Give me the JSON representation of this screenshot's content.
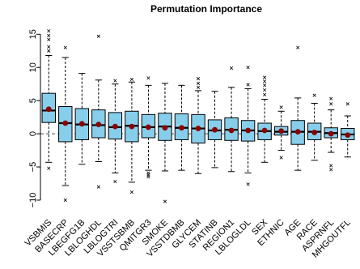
{
  "chart_data": {
    "type": "boxplot",
    "title": "Permutation Importance",
    "xlabel": "",
    "ylabel": "",
    "ylim": [
      -12.2,
      16.5
    ],
    "yticks": [
      -10,
      -5,
      0,
      5,
      10,
      15
    ],
    "reference_line": 0,
    "grid": false,
    "legend": "none",
    "colors": {
      "box_fill": "#87ceeb",
      "mean_point": "#8b0000",
      "whisker": "#000000",
      "outlier": "#000000",
      "reference": "#555555"
    },
    "categories": [
      "VSBMIS",
      "BASECRP",
      "LBEGFG1B",
      "LBLOGHDL",
      "LBLOGTRI",
      "VSSTSBMB",
      "QMITGR3",
      "SMOKE",
      "VSSTDBMB",
      "GLYCEM",
      "STATINB",
      "REGION1",
      "LBLOGLDL",
      "SEX",
      "ETHNIC",
      "AGE",
      "RACE",
      "ASPRNFL",
      "MHGOUTFL"
    ],
    "boxes": [
      {
        "name": "VSBMIS",
        "min": -4.3,
        "q1": 1.7,
        "median": 3.5,
        "q3": 6.1,
        "max": 11.8,
        "mean": 3.7,
        "outliers": [
          -5.2,
          12.5,
          13.1,
          14.2,
          14.8,
          15.5
        ]
      },
      {
        "name": "BASECRP",
        "min": -7.8,
        "q1": -1.2,
        "median": 1.6,
        "q3": 4.1,
        "max": 11.5,
        "mean": 1.6,
        "outliers": [
          -10.0,
          13.0
        ]
      },
      {
        "name": "LBEGFG1B",
        "min": -4.6,
        "q1": -0.9,
        "median": 1.4,
        "q3": 3.8,
        "max": 9.1,
        "mean": 1.5,
        "outliers": []
      },
      {
        "name": "LBLOGHDL",
        "min": -4.2,
        "q1": -0.6,
        "median": 1.3,
        "q3": 3.6,
        "max": 8.1,
        "mean": 1.4,
        "outliers": [
          -8.0,
          14.7
        ]
      },
      {
        "name": "LBLOGTRI",
        "min": -5.9,
        "q1": -0.8,
        "median": 1.0,
        "q3": 3.2,
        "max": 7.5,
        "mean": 1.1,
        "outliers": [
          -7.2,
          8.0
        ]
      },
      {
        "name": "VSSTSBMB",
        "min": -7.3,
        "q1": -1.2,
        "median": 1.2,
        "q3": 3.4,
        "max": 7.8,
        "mean": 1.1,
        "outliers": [
          -8.8,
          8.2
        ]
      },
      {
        "name": "QMITGR3",
        "min": -5.5,
        "q1": -0.6,
        "median": 1.0,
        "q3": 2.9,
        "max": 7.3,
        "mean": 1.0,
        "outliers": [
          -5.9,
          -6.2,
          -6.5,
          8.4
        ]
      },
      {
        "name": "SMOKE",
        "min": -5.6,
        "q1": -1.0,
        "median": 1.1,
        "q3": 3.1,
        "max": 7.6,
        "mean": 0.9,
        "outliers": [
          -10.2
        ]
      },
      {
        "name": "VSSTDBMB",
        "min": -5.5,
        "q1": -0.9,
        "median": 0.9,
        "q3": 3.0,
        "max": 7.3,
        "mean": 0.9,
        "outliers": []
      },
      {
        "name": "GLYCEM",
        "min": -6.0,
        "q1": -1.4,
        "median": 0.8,
        "q3": 2.9,
        "max": 6.5,
        "mean": 0.8,
        "outliers": [
          7.0,
          7.6,
          8.3
        ]
      },
      {
        "name": "STATINB",
        "min": -5.1,
        "q1": -0.9,
        "median": 0.5,
        "q3": 2.1,
        "max": 6.4,
        "mean": 0.6,
        "outliers": []
      },
      {
        "name": "REGION1",
        "min": -5.7,
        "q1": -1.0,
        "median": 0.6,
        "q3": 2.4,
        "max": 7.0,
        "mean": 0.5,
        "outliers": [
          9.9
        ]
      },
      {
        "name": "LBLOGLDL",
        "min": -5.9,
        "q1": -1.1,
        "median": 0.5,
        "q3": 2.0,
        "max": 6.8,
        "mean": 0.5,
        "outliers": [
          -7.6,
          7.4,
          10.0
        ]
      },
      {
        "name": "SEX",
        "min": -4.3,
        "q1": -0.9,
        "median": 0.4,
        "q3": 1.6,
        "max": 5.2,
        "mean": 0.5,
        "outliers": [
          5.9,
          6.6,
          7.3,
          7.9,
          8.5
        ]
      },
      {
        "name": "ETHNIC",
        "min": -2.5,
        "q1": -0.2,
        "median": 0.3,
        "q3": 1.1,
        "max": 3.4,
        "mean": 0.4,
        "outliers": [
          -3.6,
          4.0
        ]
      },
      {
        "name": "AGE",
        "min": -5.5,
        "q1": -1.6,
        "median": 0.3,
        "q3": 2.0,
        "max": 5.4,
        "mean": 0.3,
        "outliers": [
          13.0
        ]
      },
      {
        "name": "RACE",
        "min": -4.0,
        "q1": -0.9,
        "median": 0.3,
        "q3": 1.6,
        "max": 4.6,
        "mean": 0.2,
        "outliers": [
          5.8
        ]
      },
      {
        "name": "ASPRNFL",
        "min": -2.8,
        "q1": -0.6,
        "median": 0.1,
        "q3": 0.9,
        "max": 3.6,
        "mean": 0.0,
        "outliers": [
          -4.8,
          -5.4,
          4.5,
          5.3
        ]
      },
      {
        "name": "MHGOUTFL",
        "min": -3.5,
        "q1": -0.9,
        "median": -0.1,
        "q3": 0.8,
        "max": 2.7,
        "mean": -0.2,
        "outliers": [
          4.5
        ]
      }
    ]
  }
}
